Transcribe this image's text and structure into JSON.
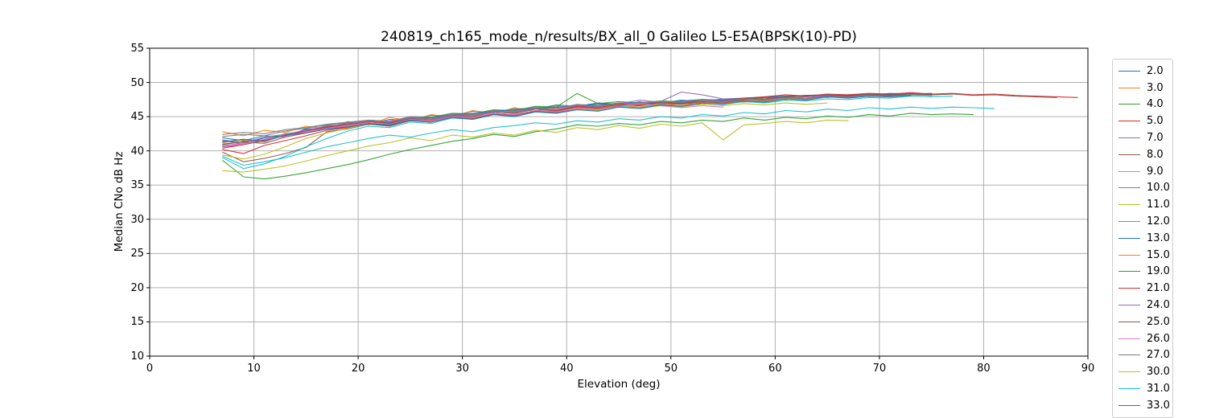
{
  "chart_data": {
    "type": "line",
    "title": "240819_ch165_mode_n/results/BX_all_0 Galileo L5-E5A(BPSK(10)-PD)",
    "xlabel": "Elevation (deg)",
    "ylabel": "Median CNo dB Hz",
    "xlim": [
      0,
      90
    ],
    "ylim": [
      10,
      55
    ],
    "xticks": [
      0,
      10,
      20,
      30,
      40,
      50,
      60,
      70,
      80,
      90
    ],
    "yticks": [
      10,
      15,
      20,
      25,
      30,
      35,
      40,
      45,
      50,
      55
    ],
    "grid": true,
    "grid_color": "#b0b0b0",
    "spine_color": "#000000",
    "legend_position": "right-outside",
    "series": [
      {
        "name": "2.0",
        "color": "#1f77b4",
        "x_start": 7,
        "x_step": 2,
        "values": [
          41.5,
          41.0,
          41.9,
          42.1,
          43.2,
          43.3,
          44.1,
          43.9,
          44.6,
          44.5,
          45.2,
          45.1,
          45.8,
          45.6,
          46.2,
          46.1,
          46.7,
          46.5,
          47.0,
          46.8,
          47.1,
          47.0,
          47.4,
          47.2,
          47.6,
          47.5,
          47.9,
          47.8,
          48.1,
          48.0,
          48.2,
          48.1,
          48.4,
          48.3,
          48.4
        ]
      },
      {
        "name": "3.0",
        "color": "#ff7f0e",
        "x_start": 7,
        "x_step": 2,
        "values": [
          42.8,
          42.2,
          43.0,
          42.7,
          43.6,
          43.2,
          44.3,
          43.8,
          44.9,
          44.4,
          45.3,
          44.9,
          45.9,
          45.4,
          46.3,
          45.8,
          46.6,
          46.2,
          46.9,
          46.5,
          47.2,
          46.6,
          47.0,
          46.8,
          47.5,
          47.1,
          47.8,
          47.5,
          48.0,
          47.8,
          48.2,
          48.0,
          48.3,
          48.2
        ]
      },
      {
        "name": "4.0",
        "color": "#2ca02c",
        "x_start": 7,
        "x_step": 2,
        "values": [
          40.9,
          41.4,
          41.6,
          42.5,
          42.9,
          43.7,
          43.8,
          44.5,
          44.3,
          45.0,
          44.9,
          45.5,
          45.4,
          46.0,
          45.9,
          46.5,
          46.4,
          48.4,
          46.9,
          47.2,
          47.0,
          47.3,
          47.2,
          47.5,
          47.4,
          47.7,
          47.6,
          47.9,
          48.0,
          48.1,
          48.0,
          48.2,
          48.1,
          48.3,
          48.2,
          48.3
        ]
      },
      {
        "name": "5.0",
        "color": "#d62728",
        "x_start": 7,
        "x_step": 2,
        "values": [
          40.2,
          39.6,
          40.8,
          41.5,
          42.2,
          43.0,
          43.4,
          44.0,
          43.8,
          44.6,
          44.4,
          45.1,
          45.0,
          45.7,
          45.5,
          46.1,
          46.0,
          46.6,
          46.4,
          46.9,
          46.7,
          47.1,
          46.9,
          47.3,
          47.2,
          47.6,
          47.4,
          47.8,
          47.7,
          48.0,
          47.9,
          48.1,
          48.0,
          48.2
        ]
      },
      {
        "name": "7.0",
        "color": "#9467bd",
        "x_start": 7,
        "x_step": 2,
        "values": [
          40.6,
          40.9,
          41.5,
          42.2,
          42.8,
          43.4,
          43.7,
          44.3,
          44.1,
          44.8,
          44.7,
          45.3,
          45.2,
          45.8,
          45.7,
          46.3,
          46.2,
          46.7,
          46.6,
          47.0,
          46.9,
          47.2,
          48.6,
          48.2,
          47.6,
          47.7,
          47.8,
          48.0,
          47.9,
          48.1,
          48.0,
          48.2,
          48.1,
          48.3,
          48.2
        ]
      },
      {
        "name": "8.0",
        "color": "#8c564b",
        "x_start": 7,
        "x_step": 2,
        "values": [
          39.8,
          38.4,
          38.9,
          39.6,
          40.5,
          42.8,
          43.2,
          43.9,
          43.6,
          44.4,
          44.2,
          44.9,
          44.8,
          45.5,
          45.3,
          45.9,
          45.8,
          46.4,
          46.2,
          46.8,
          46.6,
          47.0,
          46.8,
          47.2,
          47.1,
          47.5,
          47.3,
          47.7,
          47.6,
          47.9,
          47.8,
          48.0,
          47.9
        ]
      },
      {
        "name": "9.0",
        "color": "#e377c2",
        "x_start": 7,
        "x_step": 2,
        "values": [
          40.8,
          41.1,
          41.6,
          42.3,
          42.9,
          43.5,
          43.8,
          44.2,
          44.4,
          44.9,
          44.7,
          45.4,
          45.2,
          45.9,
          45.6,
          46.2,
          46.0,
          46.6,
          46.3,
          46.8,
          46.7,
          47.0,
          46.9,
          47.3,
          47.1,
          47.5,
          47.4,
          47.7,
          47.6,
          47.9,
          47.8,
          48.0
        ]
      },
      {
        "name": "10.0",
        "color": "#7f7f7f",
        "x_start": 7,
        "x_step": 2,
        "values": [
          42.4,
          42.7,
          42.5,
          43.1,
          43.4,
          43.9,
          44.2,
          44.5,
          44.3,
          45.0,
          44.8,
          45.4,
          45.3,
          45.9,
          45.8,
          46.4,
          46.2,
          46.8,
          46.6,
          47.0,
          46.8,
          47.2,
          47.0,
          47.4,
          47.3,
          47.6,
          47.5,
          47.9,
          47.7,
          48.0,
          47.9,
          48.2,
          48.0,
          48.3,
          48.1
        ]
      },
      {
        "name": "11.0",
        "color": "#bcbd22",
        "x_start": 7,
        "x_step": 2,
        "values": [
          39.4,
          38.8,
          39.5,
          40.6,
          41.8,
          42.6,
          43.3,
          44.0,
          43.8,
          44.5,
          44.3,
          45.0,
          44.8,
          45.4,
          45.2,
          45.8,
          45.6,
          46.1,
          45.9,
          46.4,
          46.2,
          46.6,
          46.4,
          46.8,
          46.6,
          46.9,
          46.7,
          47.0,
          46.8,
          47.0
        ]
      },
      {
        "name": "12.0",
        "color": "#17becf",
        "x_start": 7,
        "x_step": 2,
        "values": [
          39.0,
          37.4,
          38.1,
          39.2,
          40.6,
          41.8,
          42.9,
          43.6,
          43.4,
          44.2,
          44.0,
          44.8,
          44.6,
          45.3,
          45.1,
          45.8,
          45.6,
          46.2,
          46.0,
          46.5,
          46.3,
          46.8,
          46.6,
          47.0,
          46.8,
          47.2,
          47.0,
          47.4,
          47.3,
          47.6,
          47.5,
          47.8,
          47.7,
          48.0,
          47.9,
          48.0
        ]
      },
      {
        "name": "13.0",
        "color": "#1f77b4",
        "x_start": 7,
        "x_step": 2,
        "values": [
          41.9,
          41.5,
          42.2,
          42.0,
          43.1,
          43.4,
          44.0,
          44.3,
          44.1,
          44.7,
          44.9,
          45.3,
          45.5,
          45.8,
          46.0,
          46.2,
          46.4,
          46.6,
          46.8,
          46.9,
          47.1,
          47.0,
          47.3,
          47.5,
          47.4,
          47.7,
          47.8,
          48.0,
          48.1,
          48.2,
          48.1,
          48.3,
          48.2,
          48.4,
          48.3
        ]
      },
      {
        "name": "15.0",
        "color": "#ff7f0e",
        "x_start": 7,
        "x_step": 2,
        "values": [
          41.2,
          41.6,
          41.3,
          42.4,
          42.7,
          43.3,
          43.6,
          44.1,
          43.9,
          44.6,
          44.3,
          45.0,
          44.7,
          45.5,
          45.2,
          45.9,
          45.7,
          46.3,
          46.1,
          46.7,
          46.4,
          46.9,
          46.6,
          47.1,
          46.9,
          47.4,
          47.2,
          47.7,
          47.5,
          47.9,
          47.8,
          48.1,
          47.9,
          48.2
        ]
      },
      {
        "name": "19.0",
        "color": "#2ca02c",
        "x_start": 7,
        "x_step": 2,
        "values": [
          38.6,
          36.2,
          35.9,
          36.3,
          36.8,
          37.4,
          38.0,
          38.7,
          39.5,
          40.2,
          40.8,
          41.4,
          41.8,
          42.4,
          42.1,
          42.8,
          43.2,
          43.8,
          43.6,
          44.0,
          43.8,
          44.3,
          44.1,
          44.5,
          44.3,
          44.8,
          44.5,
          44.9,
          44.7,
          45.1,
          44.9,
          45.3,
          45.1,
          45.5,
          45.3,
          45.4,
          45.3
        ]
      },
      {
        "name": "21.0",
        "color": "#d62728",
        "x_start": 7,
        "x_step": 2,
        "values": [
          40.4,
          40.9,
          41.6,
          42.2,
          42.9,
          43.5,
          43.8,
          44.3,
          44.0,
          44.7,
          44.5,
          45.2,
          45.0,
          45.7,
          45.5,
          46.1,
          45.9,
          46.5,
          46.3,
          46.8,
          46.6,
          47.1,
          46.9,
          47.4,
          47.2,
          47.7,
          47.9,
          48.2,
          48.0,
          48.3,
          48.2,
          48.4,
          48.3,
          48.5,
          48.3,
          48.4,
          48.2,
          48.3,
          48.1,
          48.0,
          47.9,
          47.8
        ]
      },
      {
        "name": "24.0",
        "color": "#9467bd",
        "x_start": 7,
        "x_step": 2,
        "values": [
          41.6,
          41.2,
          42.0,
          42.4,
          43.0,
          43.6,
          43.9,
          44.4,
          44.2,
          44.8,
          44.6,
          45.2,
          45.1,
          45.7,
          45.6,
          46.2,
          46.0,
          46.6,
          46.4,
          46.9,
          47.4,
          47.1,
          47.2,
          47.4,
          47.3,
          47.6,
          47.5,
          47.8,
          47.7,
          48.0,
          47.9,
          48.1,
          48.0,
          48.2,
          48.1
        ]
      },
      {
        "name": "25.0",
        "color": "#8c564b",
        "x_start": 7,
        "x_step": 2,
        "values": [
          41.0,
          41.3,
          41.1,
          42.0,
          42.6,
          43.2,
          43.5,
          44.0,
          43.7,
          44.5,
          44.2,
          44.9,
          44.7,
          45.4,
          45.2,
          45.8,
          45.6,
          46.2,
          46.0,
          46.6,
          46.8,
          47.0,
          46.9,
          47.2,
          47.0,
          47.5,
          47.6,
          47.9,
          48.1,
          48.2,
          48.0,
          48.3,
          48.1,
          48.4,
          48.2,
          48.3,
          48.1,
          48.2,
          48.0,
          47.9,
          47.8
        ]
      },
      {
        "name": "26.0",
        "color": "#e377c2",
        "x_start": 7,
        "x_step": 2,
        "values": [
          40.7,
          41.0,
          41.7,
          42.1,
          42.8,
          43.3,
          43.7,
          44.1,
          43.9,
          44.6,
          44.4,
          45.0,
          44.9,
          45.5,
          45.3,
          45.9,
          45.7,
          46.2,
          46.0,
          46.5,
          46.9,
          46.6,
          46.3,
          46.6,
          46.4
        ]
      },
      {
        "name": "27.0",
        "color": "#7f7f7f",
        "x_start": 7,
        "x_step": 2,
        "values": [
          42.1,
          42.4,
          42.2,
          42.9,
          43.3,
          43.8,
          44.1,
          44.4,
          44.2,
          44.9,
          44.7,
          45.3,
          45.1,
          45.8,
          45.6,
          46.1,
          46.3,
          46.7,
          46.5,
          46.9,
          47.0,
          47.2,
          47.1,
          47.4,
          47.2,
          47.6,
          47.4,
          47.8,
          47.6,
          48.0,
          47.8,
          48.1,
          48.0,
          48.2,
          48.1
        ]
      },
      {
        "name": "30.0",
        "color": "#bcbd22",
        "x_start": 7,
        "x_step": 2,
        "values": [
          37.1,
          36.9,
          37.3,
          37.8,
          38.5,
          39.3,
          40.0,
          40.7,
          41.2,
          41.9,
          41.5,
          42.3,
          42.0,
          42.6,
          42.3,
          43.0,
          42.7,
          43.4,
          43.1,
          43.7,
          43.3,
          43.9,
          43.6,
          44.1,
          41.6,
          43.8,
          44.0,
          44.3,
          44.1,
          44.5,
          44.4
        ]
      },
      {
        "name": "31.0",
        "color": "#17becf",
        "x_start": 7,
        "x_step": 2,
        "values": [
          39.2,
          37.9,
          38.4,
          39.0,
          39.8,
          40.6,
          41.2,
          41.8,
          42.3,
          42.0,
          42.6,
          43.1,
          42.8,
          43.4,
          43.7,
          44.1,
          43.9,
          44.4,
          44.2,
          44.7,
          44.5,
          45.0,
          44.8,
          45.3,
          45.1,
          45.6,
          45.4,
          45.9,
          45.7,
          46.1,
          45.9,
          46.3,
          46.1,
          46.4,
          46.2,
          46.4,
          46.3,
          46.2
        ]
      },
      {
        "name": "33.0",
        "color": "#1f77b4",
        "x_start": 7,
        "x_step": 2,
        "values": [
          41.3,
          41.7,
          41.4,
          42.3,
          42.6,
          43.2,
          43.5,
          44.0,
          43.8,
          44.5,
          44.2,
          44.9,
          44.6,
          45.3,
          45.0,
          45.7,
          45.5,
          46.0,
          45.8,
          46.4,
          46.2,
          46.7,
          46.5,
          47.0,
          46.8,
          47.3,
          47.1,
          47.6,
          47.4,
          47.9,
          47.7,
          48.0,
          47.9,
          48.1
        ]
      }
    ]
  }
}
